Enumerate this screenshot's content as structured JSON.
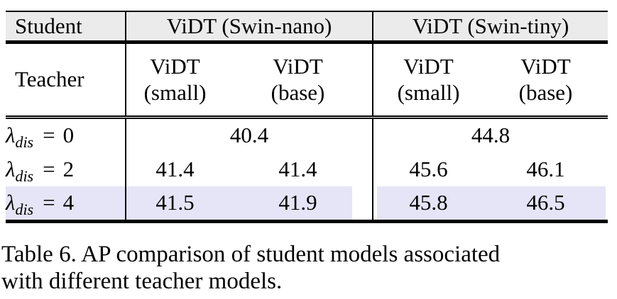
{
  "figure": {
    "table": {
      "header": {
        "student": "Student",
        "group_nano": "ViDT (Swin-nano)",
        "group_tiny": "ViDT (Swin-tiny)"
      },
      "teacher": {
        "label": "Teacher",
        "columns": [
          {
            "line1": "ViDT",
            "line2": "(small)"
          },
          {
            "line1": "ViDT",
            "line2": "(base)"
          },
          {
            "line1": "ViDT",
            "line2": "(small)"
          },
          {
            "line1": "ViDT",
            "line2": "(base)"
          }
        ]
      },
      "rows": [
        {
          "label": {
            "symbol": "λ",
            "subscript": "dis",
            "operator": "=",
            "value": "0"
          },
          "merged": true,
          "cells": [
            "40.4",
            "44.8"
          ],
          "highlighted": false
        },
        {
          "label": {
            "symbol": "λ",
            "subscript": "dis",
            "operator": "=",
            "value": "2"
          },
          "merged": false,
          "cells": [
            "41.4",
            "41.4",
            "45.6",
            "46.1"
          ],
          "highlighted": false
        },
        {
          "label": {
            "symbol": "λ",
            "subscript": "dis",
            "operator": "=",
            "value": "4"
          },
          "merged": false,
          "cells": [
            "41.5",
            "41.9",
            "45.8",
            "46.5"
          ],
          "highlighted": true
        }
      ],
      "colors": {
        "header_bg": "#ebebeb",
        "highlight": "#e5e5f7",
        "rule": "#000000",
        "text": "#000000"
      }
    },
    "caption": {
      "line1": "Table 6. AP comparison of student models associated",
      "line2": "with different teacher models."
    }
  }
}
